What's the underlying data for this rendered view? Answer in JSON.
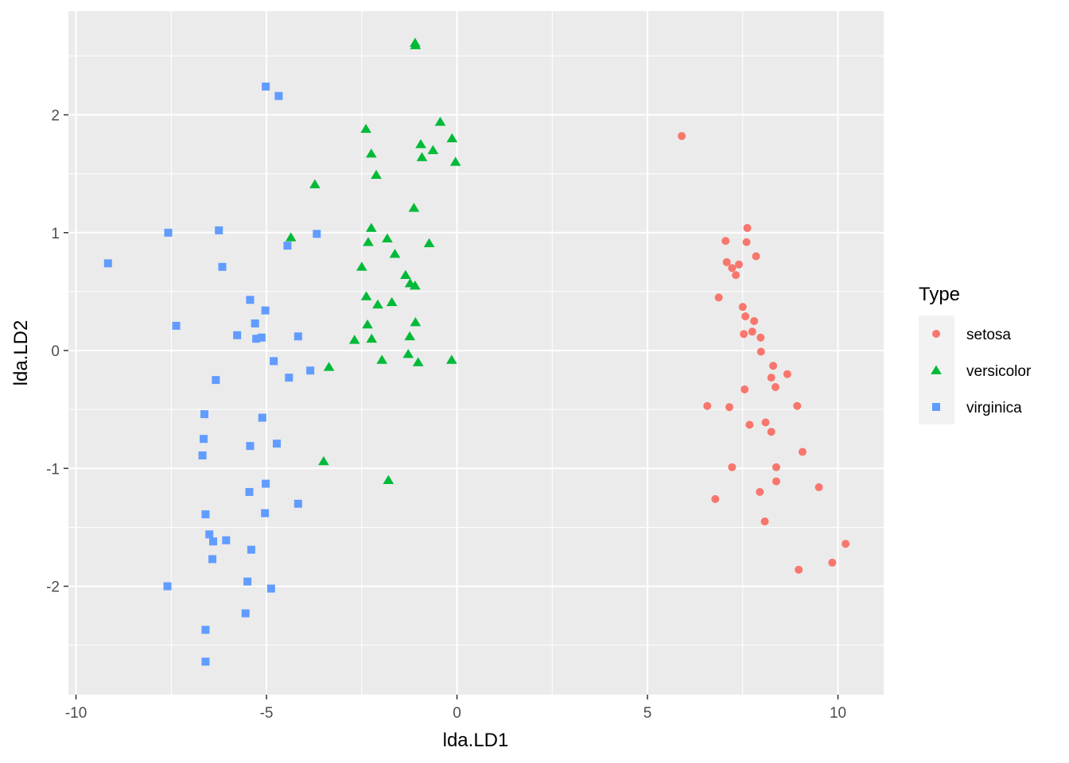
{
  "chart_data": {
    "type": "scatter",
    "title": "",
    "xlabel": "lda.LD1",
    "ylabel": "lda.LD2",
    "xlim": [
      -10.2,
      11.2
    ],
    "ylim": [
      -2.92,
      2.88
    ],
    "x_ticks": [
      -10,
      -5,
      0,
      5,
      10
    ],
    "x_tick_labels": [
      "-10",
      "-5",
      "0",
      "5",
      "10"
    ],
    "y_ticks": [
      -2,
      -1,
      0,
      1,
      2
    ],
    "y_tick_labels": [
      "-2",
      "-1",
      "0",
      "1",
      "2"
    ],
    "grid": true,
    "legend": {
      "title": "Type",
      "position": "right"
    },
    "series": [
      {
        "name": "setosa",
        "color": "#F8766D",
        "shape": "circle",
        "points": [
          [
            5.9,
            1.82
          ],
          [
            7.62,
            1.04
          ],
          [
            7.05,
            0.93
          ],
          [
            7.6,
            0.92
          ],
          [
            7.85,
            0.8
          ],
          [
            7.08,
            0.75
          ],
          [
            7.4,
            0.73
          ],
          [
            7.22,
            0.7
          ],
          [
            7.32,
            0.64
          ],
          [
            6.87,
            0.45
          ],
          [
            7.5,
            0.37
          ],
          [
            7.57,
            0.29
          ],
          [
            7.8,
            0.25
          ],
          [
            7.75,
            0.16
          ],
          [
            7.53,
            0.14
          ],
          [
            7.97,
            0.11
          ],
          [
            7.98,
            -0.01
          ],
          [
            8.3,
            -0.13
          ],
          [
            8.67,
            -0.2
          ],
          [
            8.25,
            -0.23
          ],
          [
            8.36,
            -0.31
          ],
          [
            7.55,
            -0.33
          ],
          [
            6.57,
            -0.47
          ],
          [
            7.15,
            -0.48
          ],
          [
            8.93,
            -0.47
          ],
          [
            8.1,
            -0.61
          ],
          [
            7.68,
            -0.63
          ],
          [
            8.25,
            -0.69
          ],
          [
            9.07,
            -0.86
          ],
          [
            7.22,
            -0.99
          ],
          [
            8.38,
            -0.99
          ],
          [
            8.38,
            -1.11
          ],
          [
            9.5,
            -1.16
          ],
          [
            7.95,
            -1.2
          ],
          [
            6.78,
            -1.26
          ],
          [
            8.08,
            -1.45
          ],
          [
            10.2,
            -1.64
          ],
          [
            9.85,
            -1.8
          ],
          [
            8.97,
            -1.86
          ]
        ]
      },
      {
        "name": "versicolor",
        "color": "#00BA38",
        "shape": "triangle",
        "points": [
          [
            -1.1,
            2.61
          ],
          [
            -1.09,
            2.59
          ],
          [
            -0.44,
            1.94
          ],
          [
            -2.39,
            1.88
          ],
          [
            -0.13,
            1.8
          ],
          [
            -0.95,
            1.75
          ],
          [
            -0.63,
            1.7
          ],
          [
            -2.25,
            1.67
          ],
          [
            -0.92,
            1.64
          ],
          [
            -0.04,
            1.6
          ],
          [
            -2.12,
            1.49
          ],
          [
            -3.73,
            1.41
          ],
          [
            -1.13,
            1.21
          ],
          [
            -2.25,
            1.04
          ],
          [
            -4.36,
            0.96
          ],
          [
            -1.83,
            0.95
          ],
          [
            -2.33,
            0.92
          ],
          [
            -0.73,
            0.91
          ],
          [
            -1.63,
            0.82
          ],
          [
            -2.5,
            0.71
          ],
          [
            -1.35,
            0.64
          ],
          [
            -1.23,
            0.57
          ],
          [
            -1.1,
            0.55
          ],
          [
            -2.38,
            0.46
          ],
          [
            -1.71,
            0.41
          ],
          [
            -2.08,
            0.39
          ],
          [
            -2.35,
            0.22
          ],
          [
            -1.09,
            0.24
          ],
          [
            -1.24,
            0.12
          ],
          [
            -2.24,
            0.1
          ],
          [
            -2.69,
            0.09
          ],
          [
            -1.28,
            -0.03
          ],
          [
            -0.14,
            -0.08
          ],
          [
            -1.97,
            -0.08
          ],
          [
            -1.02,
            -0.1
          ],
          [
            -3.36,
            -0.14
          ],
          [
            -3.5,
            -0.94
          ],
          [
            -1.8,
            -1.1
          ]
        ]
      },
      {
        "name": "virginica",
        "color": "#619CFF",
        "shape": "square",
        "points": [
          [
            -5.02,
            2.24
          ],
          [
            -4.68,
            2.16
          ],
          [
            -7.58,
            1.0
          ],
          [
            -6.25,
            1.02
          ],
          [
            -3.68,
            0.99
          ],
          [
            -4.45,
            0.89
          ],
          [
            -9.16,
            0.74
          ],
          [
            -6.16,
            0.71
          ],
          [
            -5.43,
            0.43
          ],
          [
            -5.03,
            0.34
          ],
          [
            -7.37,
            0.21
          ],
          [
            -5.3,
            0.23
          ],
          [
            -5.77,
            0.13
          ],
          [
            -5.13,
            0.11
          ],
          [
            -5.27,
            0.1
          ],
          [
            -4.17,
            0.12
          ],
          [
            -4.81,
            -0.09
          ],
          [
            -3.85,
            -0.17
          ],
          [
            -4.41,
            -0.23
          ],
          [
            -6.33,
            -0.25
          ],
          [
            -6.63,
            -0.54
          ],
          [
            -5.11,
            -0.57
          ],
          [
            -6.65,
            -0.75
          ],
          [
            -5.43,
            -0.81
          ],
          [
            -4.73,
            -0.79
          ],
          [
            -6.68,
            -0.89
          ],
          [
            -5.02,
            -1.13
          ],
          [
            -5.45,
            -1.2
          ],
          [
            -4.17,
            -1.3
          ],
          [
            -5.04,
            -1.38
          ],
          [
            -6.6,
            -1.39
          ],
          [
            -6.5,
            -1.56
          ],
          [
            -6.4,
            -1.62
          ],
          [
            -6.06,
            -1.61
          ],
          [
            -5.4,
            -1.69
          ],
          [
            -6.42,
            -1.77
          ],
          [
            -7.6,
            -2.0
          ],
          [
            -5.5,
            -1.96
          ],
          [
            -4.88,
            -2.02
          ],
          [
            -5.55,
            -2.23
          ],
          [
            -6.6,
            -2.37
          ],
          [
            -6.6,
            -2.64
          ]
        ]
      }
    ]
  }
}
